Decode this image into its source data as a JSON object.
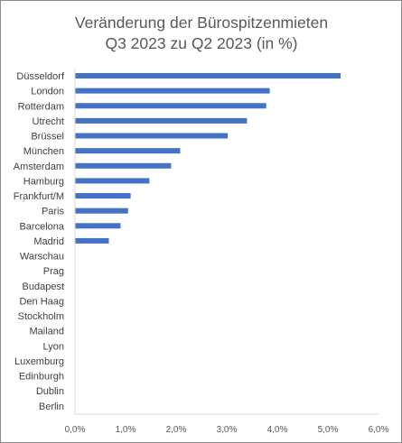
{
  "chart_data": {
    "type": "bar",
    "orientation": "horizontal",
    "title": "Veränderung der Bürospitzenmieten",
    "subtitle": "Q3 2023 zu Q2 2023 (in %)",
    "categories": [
      "Düsseldorf",
      "London",
      "Rotterdam",
      "Utrecht",
      "Brüssel",
      "München",
      "Amsterdam",
      "Hamburg",
      "Frankfurt/M",
      "Paris",
      "Barcelona",
      "Madrid",
      "Warschau",
      "Prag",
      "Budapest",
      "Den Haag",
      "Stockholm",
      "Mailand",
      "Lyon",
      "Luxemburg",
      "Edinburgh",
      "Dublin",
      "Berlin"
    ],
    "values": [
      5.25,
      3.85,
      3.78,
      3.4,
      3.02,
      2.08,
      1.9,
      1.47,
      1.1,
      1.05,
      0.9,
      0.67,
      0,
      0,
      0,
      0,
      0,
      0,
      0,
      0,
      0,
      0,
      0
    ],
    "xlim": [
      0,
      6
    ],
    "xticks": [
      "0,0%",
      "1,0%",
      "2,0%",
      "3,0%",
      "4,0%",
      "5,0%",
      "6,0%"
    ],
    "bar_color": "#4472c4",
    "axis_color": "#d9d9d9",
    "grid": false,
    "legend": "none"
  }
}
